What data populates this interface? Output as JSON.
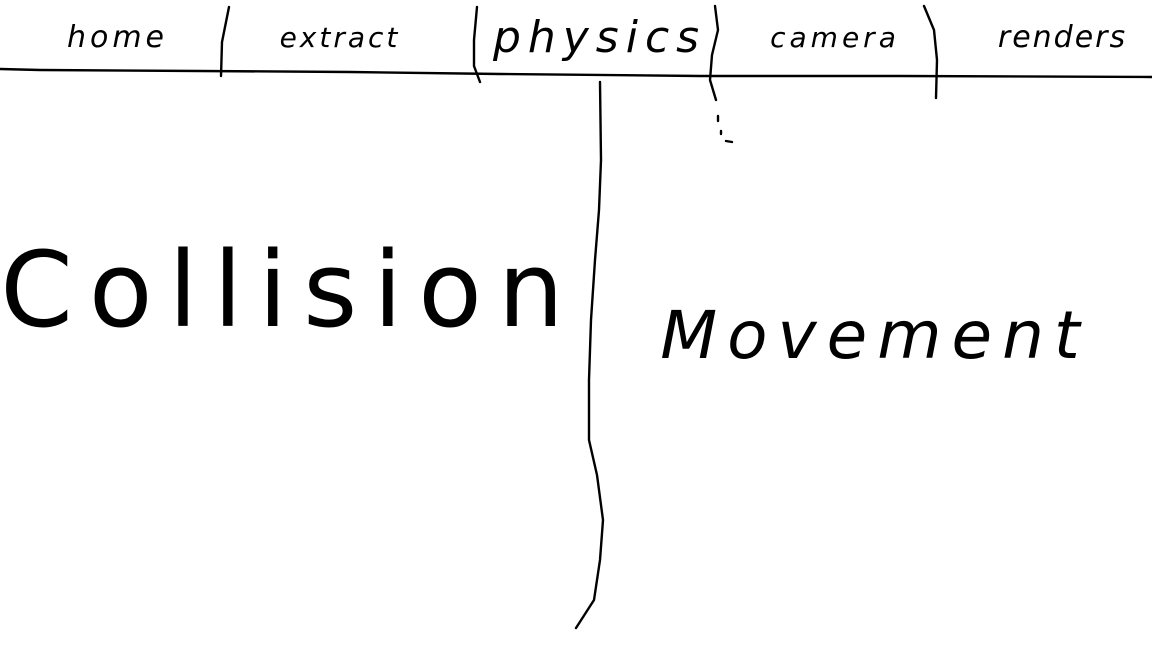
{
  "tabs": [
    {
      "label": "home"
    },
    {
      "label": "extract"
    },
    {
      "label": "physics"
    },
    {
      "label": "camera"
    },
    {
      "label": "renders"
    }
  ],
  "panels": {
    "left": {
      "title": "Collision"
    },
    "right": {
      "title": "Movement"
    }
  },
  "colors": {
    "ink": "#000000",
    "paper": "#ffffff"
  }
}
